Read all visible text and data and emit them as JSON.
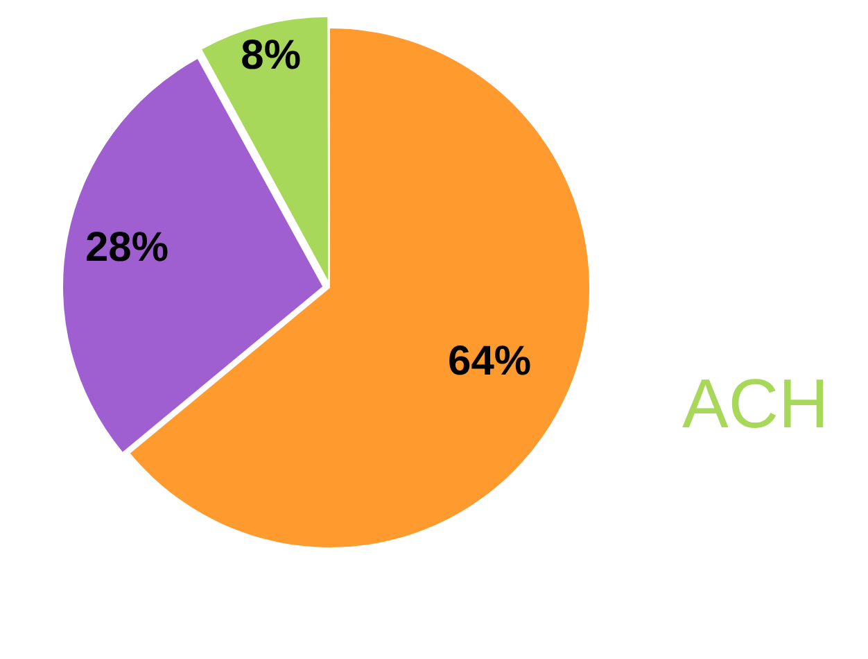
{
  "chart_data": {
    "type": "pie",
    "categories": [
      null,
      null,
      null
    ],
    "values": [
      64,
      28,
      8
    ],
    "colors": [
      "#ff9a2e",
      "#a05fd0",
      "#a8d85a"
    ],
    "value_labels": [
      "64%",
      "28%",
      "8%"
    ],
    "annotations": [
      "ACH"
    ],
    "legend": false
  }
}
